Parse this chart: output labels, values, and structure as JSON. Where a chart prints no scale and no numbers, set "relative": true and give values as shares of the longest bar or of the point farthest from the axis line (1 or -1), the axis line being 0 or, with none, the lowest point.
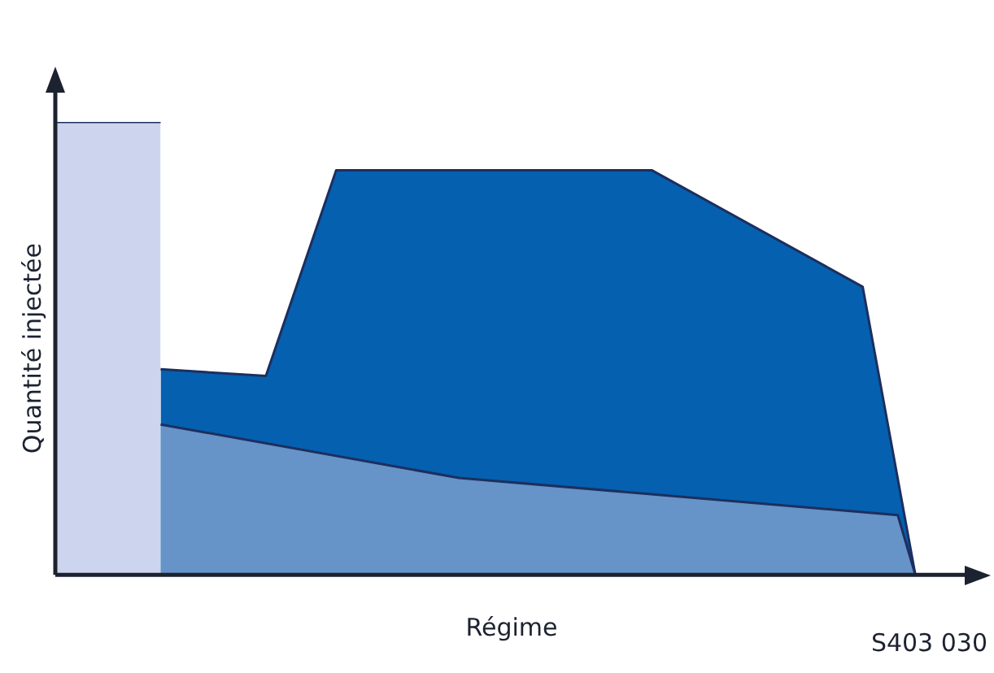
{
  "chart_data": {
    "type": "area",
    "relative": true,
    "xlabel": "Régime",
    "ylabel": "Quantité injectée",
    "grid": false,
    "legend": false,
    "categories": [
      null,
      null,
      null,
      null,
      null,
      null,
      null,
      null,
      null,
      null,
      null,
      null,
      null,
      null,
      null,
      null,
      null,
      null,
      null,
      null,
      null,
      null,
      null,
      null,
      null,
      null,
      null,
      null,
      null,
      null,
      null,
      null,
      null,
      null,
      null,
      null,
      null,
      null,
      null,
      null,
      null,
      null,
      null,
      null,
      null,
      null,
      null,
      null,
      null,
      null,
      null,
      null,
      null
    ],
    "series": [
      {
        "color": "#cdd5ee",
        "values": [
          1,
          null,
          null,
          null,
          null,
          null,
          1,
          null,
          null,
          null,
          null,
          null,
          null,
          null,
          null,
          null,
          null,
          null,
          null,
          null,
          null,
          null,
          null,
          null,
          null,
          null,
          null,
          null,
          null,
          null,
          null,
          null,
          null,
          null,
          null,
          null,
          null,
          null,
          null,
          null,
          null,
          null,
          null,
          null,
          null,
          null,
          null,
          null,
          null,
          null,
          null,
          null,
          null
        ]
      },
      {
        "color": "#0560b0",
        "values": [
          null,
          null,
          null,
          null,
          null,
          null,
          0.454,
          null,
          null,
          null,
          null,
          null,
          0.439,
          null,
          null,
          null,
          0.893,
          null,
          null,
          null,
          null,
          null,
          null,
          null,
          null,
          null,
          null,
          null,
          null,
          null,
          null,
          null,
          null,
          null,
          0.893,
          null,
          null,
          null,
          null,
          null,
          null,
          null,
          null,
          null,
          null,
          null,
          0.636,
          null,
          null,
          0,
          null,
          null,
          null
        ]
      },
      {
        "color": "#6693c8",
        "values": [
          null,
          null,
          null,
          null,
          null,
          null,
          0.332,
          null,
          null,
          null,
          null,
          null,
          null,
          null,
          null,
          null,
          null,
          null,
          null,
          null,
          null,
          null,
          null,
          0.214,
          null,
          null,
          null,
          null,
          null,
          null,
          null,
          null,
          null,
          null,
          null,
          null,
          null,
          null,
          null,
          null,
          null,
          null,
          null,
          null,
          null,
          null,
          null,
          null,
          0.132,
          0,
          null,
          null,
          null
        ]
      }
    ],
    "annotations": [
      "S403 030"
    ]
  }
}
